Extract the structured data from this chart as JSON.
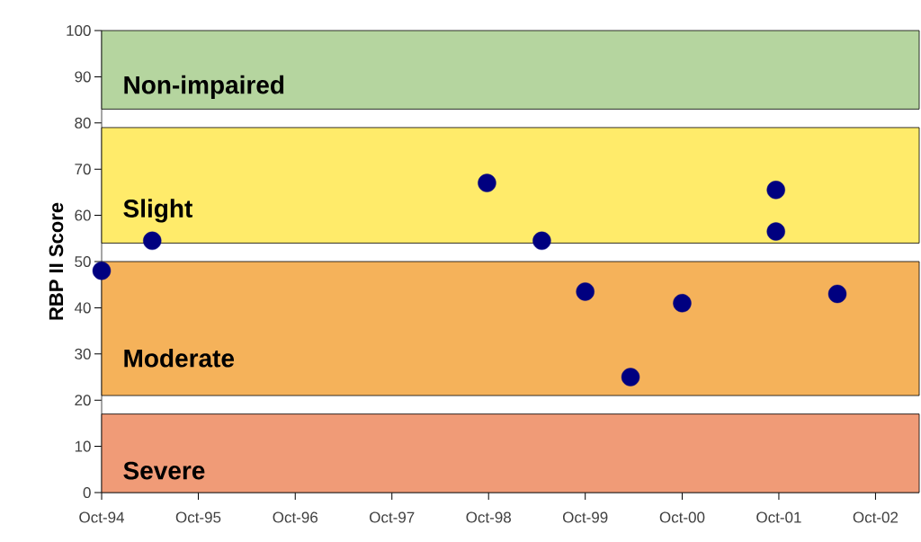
{
  "chart_data": {
    "type": "scatter",
    "ylabel": "RBP II Score",
    "x": [
      "1994-10-01",
      "1995-04-10",
      "1998-09-25",
      "1999-04-20",
      "1999-10-01",
      "2000-03-20",
      "2000-10-01",
      "2001-09-20",
      "2001-09-20",
      "2002-05-10"
    ],
    "values": [
      48,
      54.5,
      67,
      54.5,
      43.5,
      25,
      41,
      65.5,
      56.5,
      43
    ],
    "color": "#000080",
    "marker": "circle",
    "xlim": [
      "1994-10-01",
      "2003-03-15"
    ],
    "xticks": [
      {
        "value": "1994-10-01",
        "label": "Oct-94"
      },
      {
        "value": "1995-10-01",
        "label": "Oct-95"
      },
      {
        "value": "1996-10-01",
        "label": "Oct-96"
      },
      {
        "value": "1997-10-01",
        "label": "Oct-97"
      },
      {
        "value": "1998-10-01",
        "label": "Oct-98"
      },
      {
        "value": "1999-10-01",
        "label": "Oct-99"
      },
      {
        "value": "2000-10-01",
        "label": "Oct-00"
      },
      {
        "value": "2001-10-01",
        "label": "Oct-01"
      },
      {
        "value": "2002-10-01",
        "label": "Oct-02"
      }
    ],
    "ylim": [
      0,
      100
    ],
    "yticks": [
      0,
      10,
      20,
      30,
      40,
      50,
      60,
      70,
      80,
      90,
      100
    ],
    "bands": [
      {
        "axis": "y",
        "from": 83,
        "to": 100,
        "label": "Non-impaired",
        "color": "#b5d59f"
      },
      {
        "axis": "y",
        "from": 54,
        "to": 79,
        "label": "Slight",
        "color": "#ffeb6a"
      },
      {
        "axis": "y",
        "from": 21,
        "to": 50,
        "label": "Moderate",
        "color": "#f5b25a"
      },
      {
        "axis": "y",
        "from": 0,
        "to": 17,
        "label": "Severe",
        "color": "#f09b77"
      }
    ]
  }
}
